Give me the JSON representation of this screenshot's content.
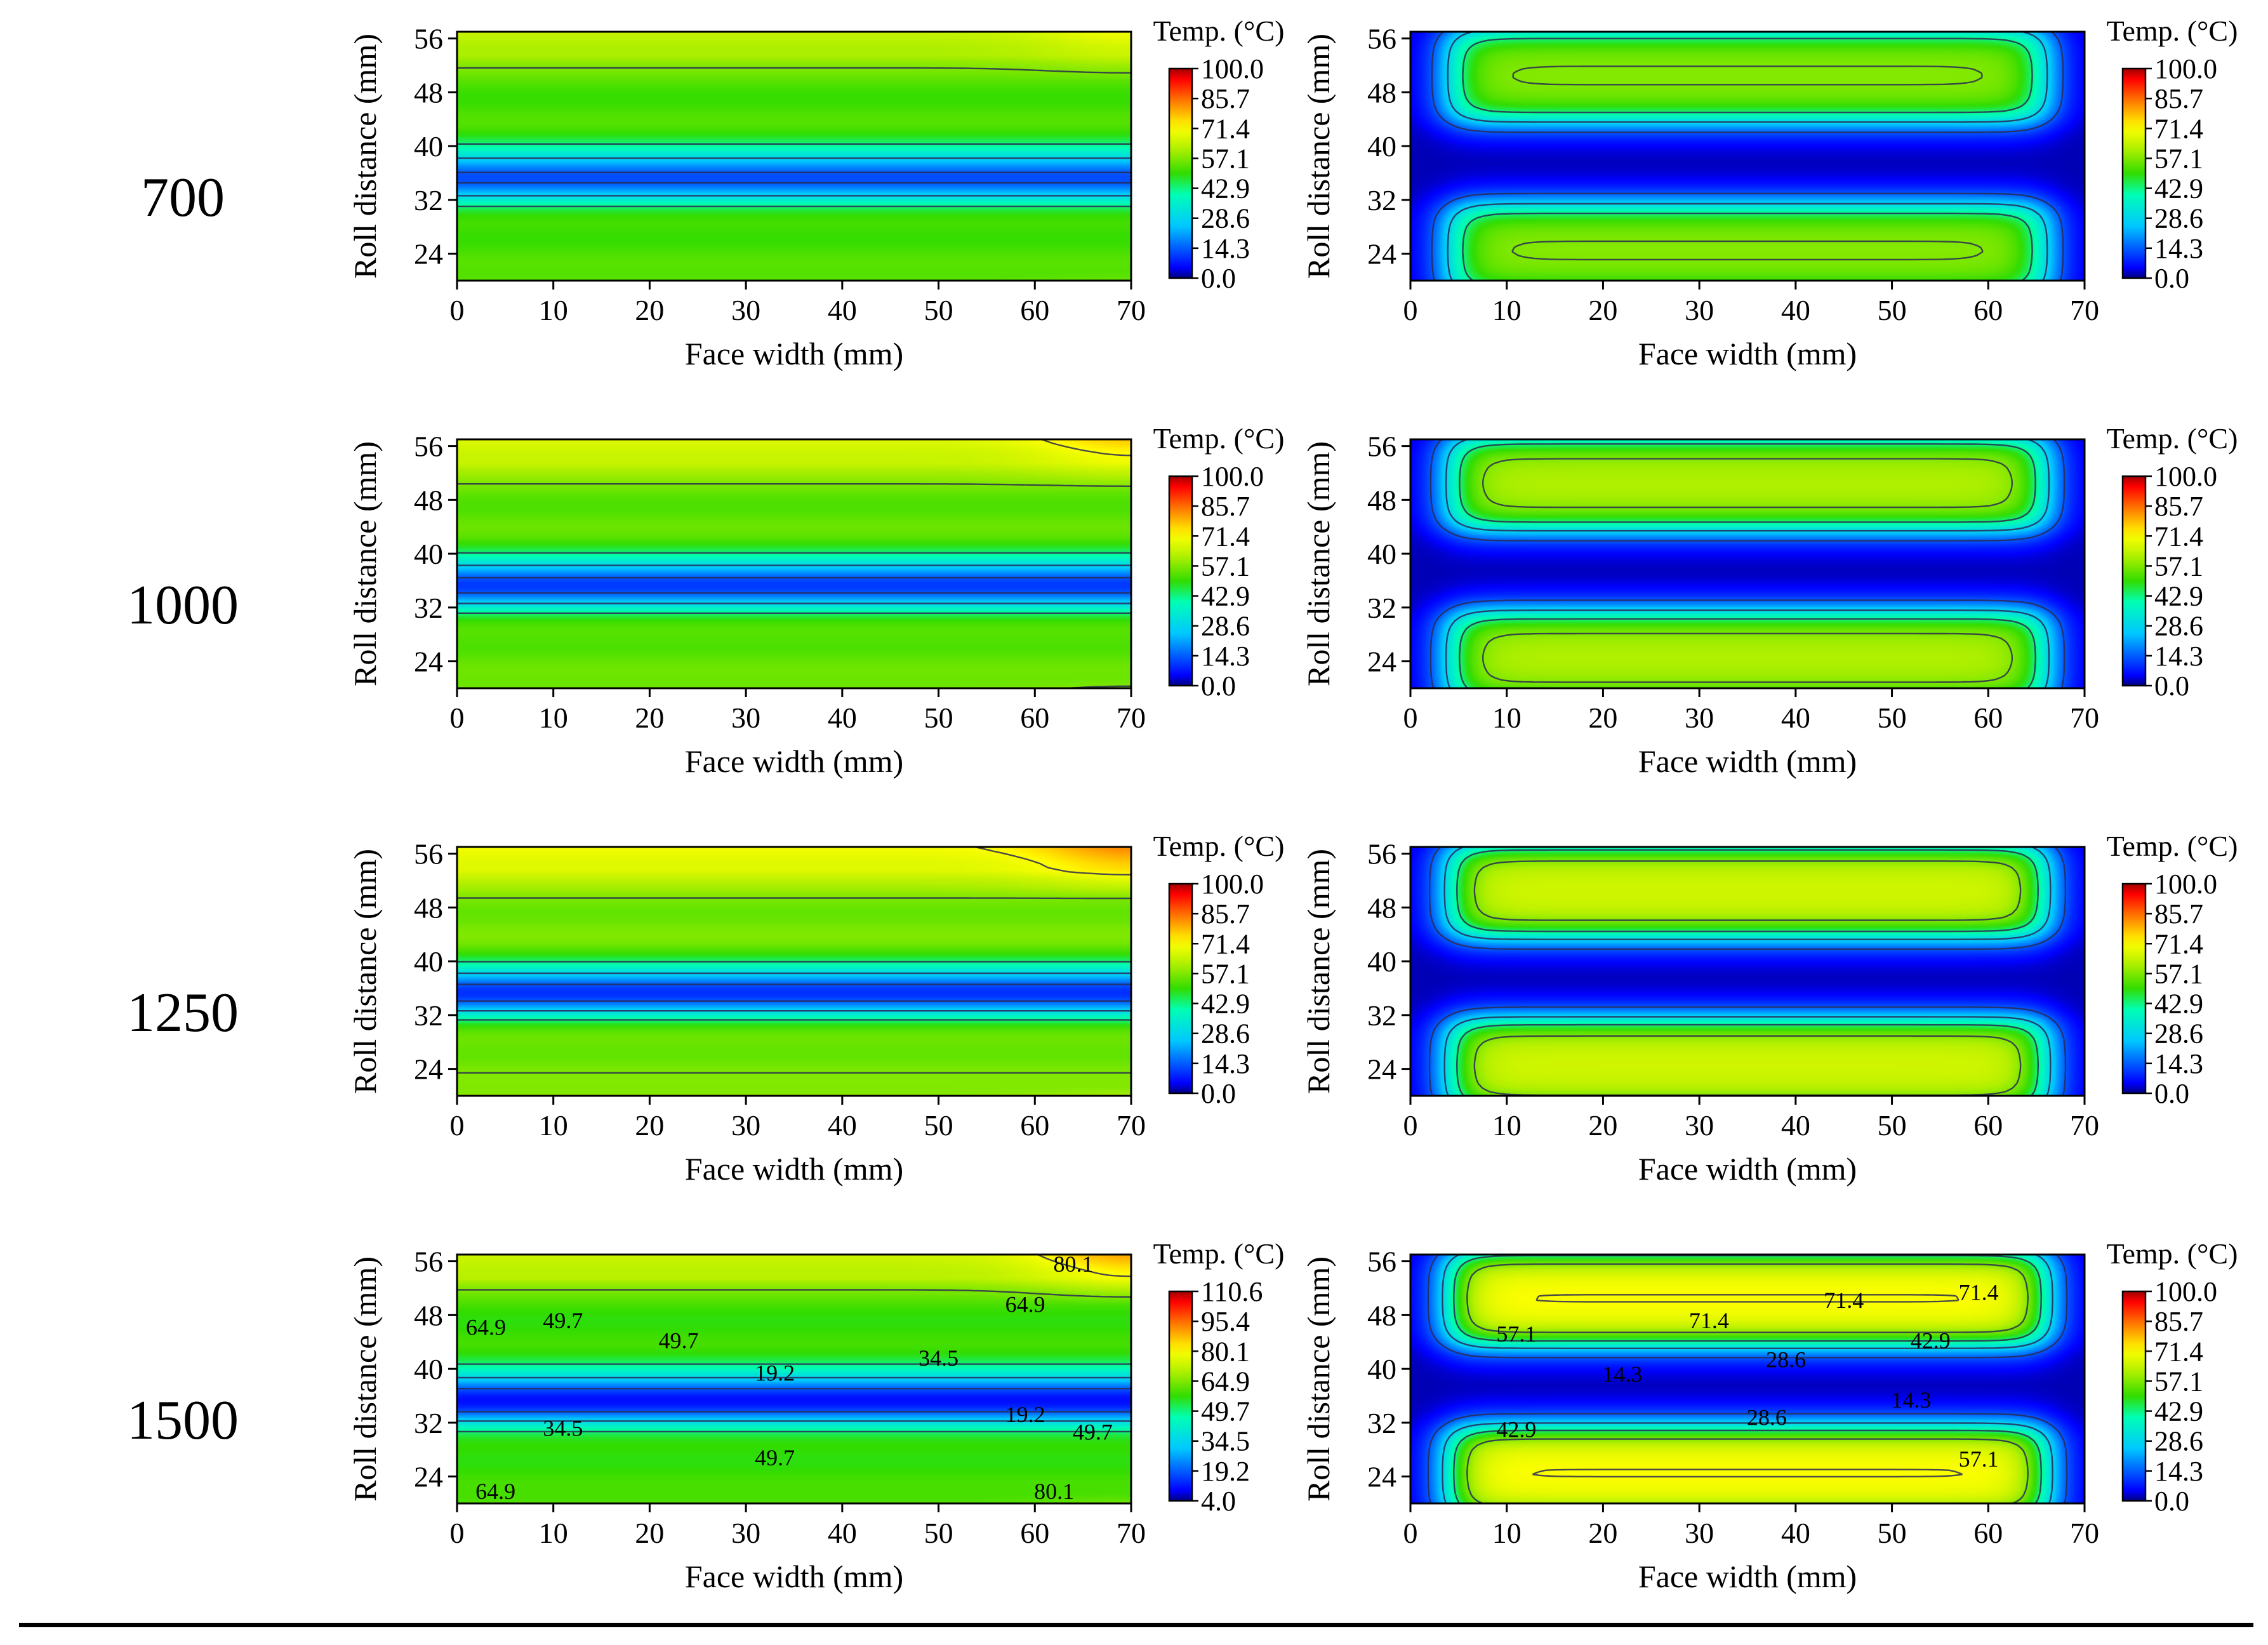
{
  "figure": {
    "x_axis_label": "Face width (mm)",
    "y_axis_label": "Roll distance (mm)",
    "colorbar_title": "Temp. (°C)",
    "x_ticks": [
      0,
      10,
      20,
      30,
      40,
      50,
      60,
      70
    ],
    "y_ticks": [
      24,
      32,
      40,
      48,
      56
    ],
    "colormap": [
      "#000080",
      "#0000ff",
      "#00c8ff",
      "#00ffb4",
      "#32dc00",
      "#b4f000",
      "#ffff00",
      "#ff8000",
      "#ff0000",
      "#a00000"
    ],
    "rows": [
      {
        "label": "700"
      },
      {
        "label": "1000"
      },
      {
        "label": "1250"
      },
      {
        "label": "1500"
      }
    ]
  },
  "chart_data": [
    {
      "type": "heatmap",
      "title": "700 (left)",
      "row_label": "700",
      "xlabel": "Face width (mm)",
      "ylabel": "Roll distance (mm)",
      "xlim": [
        0,
        70
      ],
      "ylim": [
        20,
        57
      ],
      "colorbar_label": "Temp. (°C)",
      "colorbar_ticks": [
        "100.0",
        "85.7",
        "71.4",
        "57.1",
        "42.9",
        "28.6",
        "14.3",
        "0.0"
      ],
      "colorbar_range": [
        0,
        100
      ],
      "pattern": "bands",
      "band_edge_temp": 70,
      "band_mid_temp": 52,
      "band_min_temp": 12,
      "corner_hot": 0.4,
      "contour_labels": []
    },
    {
      "type": "heatmap",
      "title": "700 (right)",
      "row_label": "700",
      "xlabel": "Face width (mm)",
      "ylabel": "Roll distance (mm)",
      "xlim": [
        0,
        70
      ],
      "ylim": [
        20,
        57
      ],
      "colorbar_label": "Temp. (°C)",
      "colorbar_ticks": [
        "100.0",
        "85.7",
        "71.4",
        "57.1",
        "42.9",
        "28.6",
        "14.3",
        "0.0"
      ],
      "colorbar_range": [
        0,
        100
      ],
      "pattern": "pads",
      "pad_peak_temp": 58,
      "contour_labels": []
    },
    {
      "type": "heatmap",
      "title": "1000 (left)",
      "row_label": "1000",
      "xlabel": "Face width (mm)",
      "ylabel": "Roll distance (mm)",
      "xlim": [
        0,
        70
      ],
      "ylim": [
        20,
        57
      ],
      "colorbar_label": "Temp. (°C)",
      "colorbar_ticks": [
        "100.0",
        "85.7",
        "71.4",
        "57.1",
        "42.9",
        "28.6",
        "14.3",
        "0.0"
      ],
      "colorbar_range": [
        0,
        100
      ],
      "pattern": "bands",
      "band_edge_temp": 74,
      "band_mid_temp": 54,
      "band_min_temp": 10,
      "corner_hot": 0.6,
      "contour_labels": []
    },
    {
      "type": "heatmap",
      "title": "1000 (right)",
      "row_label": "1000",
      "xlabel": "Face width (mm)",
      "ylabel": "Roll distance (mm)",
      "xlim": [
        0,
        70
      ],
      "ylim": [
        20,
        57
      ],
      "colorbar_label": "Temp. (°C)",
      "colorbar_ticks": [
        "100.0",
        "85.7",
        "71.4",
        "57.1",
        "42.9",
        "28.6",
        "14.3",
        "0.0"
      ],
      "colorbar_range": [
        0,
        100
      ],
      "pattern": "pads",
      "pad_peak_temp": 62,
      "contour_labels": []
    },
    {
      "type": "heatmap",
      "title": "1250 (left)",
      "row_label": "1250",
      "xlabel": "Face width (mm)",
      "ylabel": "Roll distance (mm)",
      "xlim": [
        0,
        70
      ],
      "ylim": [
        20,
        57
      ],
      "colorbar_label": "Temp. (°C)",
      "colorbar_ticks": [
        "100.0",
        "85.7",
        "71.4",
        "57.1",
        "42.9",
        "28.6",
        "14.3",
        "0.0"
      ],
      "colorbar_range": [
        0,
        100
      ],
      "pattern": "bands",
      "band_edge_temp": 78,
      "band_mid_temp": 56,
      "band_min_temp": 9,
      "corner_hot": 0.8,
      "contour_labels": []
    },
    {
      "type": "heatmap",
      "title": "1250 (right)",
      "row_label": "1250",
      "xlabel": "Face width (mm)",
      "ylabel": "Roll distance (mm)",
      "xlim": [
        0,
        70
      ],
      "ylim": [
        20,
        57
      ],
      "colorbar_label": "Temp. (°C)",
      "colorbar_ticks": [
        "100.0",
        "85.7",
        "71.4",
        "57.1",
        "42.9",
        "28.6",
        "14.3",
        "0.0"
      ],
      "colorbar_range": [
        0,
        100
      ],
      "pattern": "pads",
      "pad_peak_temp": 66,
      "contour_labels": []
    },
    {
      "type": "heatmap",
      "title": "1500 (left)",
      "row_label": "1500",
      "xlabel": "Face width (mm)",
      "ylabel": "Roll distance (mm)",
      "xlim": [
        0,
        70
      ],
      "ylim": [
        20,
        57
      ],
      "colorbar_label": "Temp. (°C)",
      "colorbar_ticks": [
        "110.6",
        "95.4",
        "80.1",
        "64.9",
        "49.7",
        "34.5",
        "19.2",
        "4.0"
      ],
      "colorbar_range": [
        4,
        110.6
      ],
      "pattern": "bands",
      "band_edge_temp": 82,
      "band_mid_temp": 58,
      "band_min_temp": 10,
      "corner_hot": 1.0,
      "contour_labels": [
        {
          "text": "80.1",
          "x": 64,
          "y": 55.6
        },
        {
          "text": "64.9",
          "x": 59,
          "y": 49.6
        },
        {
          "text": "64.9",
          "x": 3,
          "y": 46.2
        },
        {
          "text": "49.7",
          "x": 11,
          "y": 47.2
        },
        {
          "text": "49.7",
          "x": 23,
          "y": 44.2
        },
        {
          "text": "34.5",
          "x": 50,
          "y": 41.6
        },
        {
          "text": "19.2",
          "x": 33,
          "y": 39.4
        },
        {
          "text": "19.2",
          "x": 59,
          "y": 33.2
        },
        {
          "text": "34.5",
          "x": 11,
          "y": 31.2
        },
        {
          "text": "49.7",
          "x": 66,
          "y": 30.6
        },
        {
          "text": "49.7",
          "x": 33,
          "y": 26.8
        },
        {
          "text": "64.9",
          "x": 4,
          "y": 21.8
        },
        {
          "text": "80.1",
          "x": 62,
          "y": 21.8
        }
      ]
    },
    {
      "type": "heatmap",
      "title": "1500 (right)",
      "row_label": "1500",
      "xlabel": "Face width (mm)",
      "ylabel": "Roll distance (mm)",
      "xlim": [
        0,
        70
      ],
      "ylim": [
        20,
        57
      ],
      "colorbar_label": "Temp. (°C)",
      "colorbar_ticks": [
        "100.0",
        "85.7",
        "71.4",
        "57.1",
        "42.9",
        "28.6",
        "14.3",
        "0.0"
      ],
      "colorbar_range": [
        0,
        100
      ],
      "pattern": "pads",
      "pad_peak_temp": 72,
      "contour_labels": [
        {
          "text": "71.4",
          "x": 59,
          "y": 51.4
        },
        {
          "text": "71.4",
          "x": 45,
          "y": 50.2
        },
        {
          "text": "71.4",
          "x": 31,
          "y": 47.2
        },
        {
          "text": "57.1",
          "x": 11,
          "y": 45.2
        },
        {
          "text": "42.9",
          "x": 54,
          "y": 44.2
        },
        {
          "text": "28.6",
          "x": 39,
          "y": 41.4
        },
        {
          "text": "14.3",
          "x": 22,
          "y": 39.2
        },
        {
          "text": "14.3",
          "x": 52,
          "y": 35.4
        },
        {
          "text": "28.6",
          "x": 37,
          "y": 32.8
        },
        {
          "text": "42.9",
          "x": 11,
          "y": 31.0
        },
        {
          "text": "57.1",
          "x": 59,
          "y": 26.6
        }
      ]
    }
  ]
}
